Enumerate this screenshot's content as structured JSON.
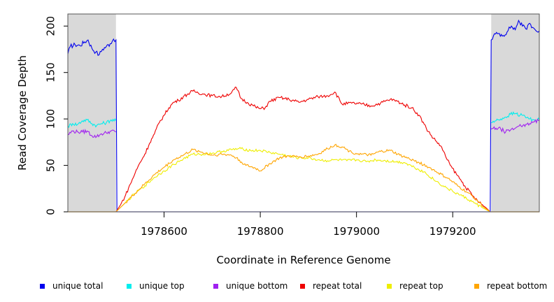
{
  "chart_data": {
    "type": "line",
    "title": "",
    "xlabel": "Coordinate in Reference Genome",
    "ylabel": "Read Coverage Depth",
    "xlim": [
      1978400,
      1979380
    ],
    "ylim": [
      0,
      213
    ],
    "xticks": [
      1978600,
      1978800,
      1979000,
      1979200
    ],
    "xtick_labels": [
      "1978600",
      "1978800",
      "1979000",
      "1979200"
    ],
    "yticks": [
      0,
      50,
      100,
      150,
      200
    ],
    "ytick_labels": [
      "0",
      "50",
      "100",
      "150",
      "200"
    ],
    "grid": false,
    "shaded_regions": [
      {
        "x": [
          1978400,
          1978500
        ],
        "color": "#d9d9d9"
      },
      {
        "x": [
          1979280,
          1979380
        ],
        "color": "#d9d9d9"
      }
    ],
    "legend_position": "bottom",
    "series": [
      {
        "name": "unique total",
        "color": "#0000ee",
        "points": [
          [
            1978400,
            170
          ],
          [
            1978405,
            178
          ],
          [
            1978415,
            180
          ],
          [
            1978425,
            179
          ],
          [
            1978435,
            183
          ],
          [
            1978442,
            185
          ],
          [
            1978450,
            176
          ],
          [
            1978458,
            172
          ],
          [
            1978465,
            169
          ],
          [
            1978472,
            175
          ],
          [
            1978480,
            178
          ],
          [
            1978488,
            181
          ],
          [
            1978495,
            186
          ],
          [
            1978500,
            185
          ],
          [
            1978502,
            0
          ],
          [
            1979278,
            0
          ],
          [
            1979280,
            185
          ],
          [
            1979285,
            190
          ],
          [
            1979295,
            192
          ],
          [
            1979305,
            190
          ],
          [
            1979315,
            195
          ],
          [
            1979322,
            200
          ],
          [
            1979330,
            196
          ],
          [
            1979337,
            206
          ],
          [
            1979345,
            200
          ],
          [
            1979352,
            197
          ],
          [
            1979360,
            203
          ],
          [
            1979368,
            198
          ],
          [
            1979375,
            194
          ],
          [
            1979380,
            195
          ]
        ]
      },
      {
        "name": "unique top",
        "color": "#00eeee",
        "points": [
          [
            1978400,
            92
          ],
          [
            1978410,
            95
          ],
          [
            1978420,
            94
          ],
          [
            1978430,
            98
          ],
          [
            1978440,
            99
          ],
          [
            1978450,
            95
          ],
          [
            1978460,
            93
          ],
          [
            1978470,
            95
          ],
          [
            1978480,
            96
          ],
          [
            1978490,
            99
          ],
          [
            1978500,
            98
          ],
          [
            1979280,
            96
          ],
          [
            1979290,
            98
          ],
          [
            1979300,
            100
          ],
          [
            1979310,
            102
          ],
          [
            1979320,
            105
          ],
          [
            1979330,
            106
          ],
          [
            1979340,
            104
          ],
          [
            1979350,
            103
          ],
          [
            1979360,
            100
          ],
          [
            1979370,
            99
          ],
          [
            1979380,
            99
          ]
        ]
      },
      {
        "name": "unique bottom",
        "color": "#a020f0",
        "points": [
          [
            1978400,
            83
          ],
          [
            1978410,
            87
          ],
          [
            1978420,
            86
          ],
          [
            1978430,
            86
          ],
          [
            1978440,
            87
          ],
          [
            1978450,
            82
          ],
          [
            1978460,
            81
          ],
          [
            1978470,
            84
          ],
          [
            1978480,
            85
          ],
          [
            1978490,
            87
          ],
          [
            1978500,
            86
          ],
          [
            1979280,
            89
          ],
          [
            1979290,
            90
          ],
          [
            1979300,
            89
          ],
          [
            1979310,
            86
          ],
          [
            1979320,
            88
          ],
          [
            1979330,
            90
          ],
          [
            1979340,
            94
          ],
          [
            1979350,
            92
          ],
          [
            1979360,
            95
          ],
          [
            1979370,
            97
          ],
          [
            1979380,
            98
          ]
        ]
      },
      {
        "name": "repeat total",
        "color": "#ee0000",
        "points": [
          [
            1978500,
            0
          ],
          [
            1978510,
            8
          ],
          [
            1978520,
            18
          ],
          [
            1978530,
            30
          ],
          [
            1978540,
            42
          ],
          [
            1978550,
            53
          ],
          [
            1978560,
            62
          ],
          [
            1978570,
            74
          ],
          [
            1978580,
            84
          ],
          [
            1978590,
            96
          ],
          [
            1978600,
            104
          ],
          [
            1978610,
            112
          ],
          [
            1978620,
            118
          ],
          [
            1978630,
            120
          ],
          [
            1978640,
            124
          ],
          [
            1978650,
            127
          ],
          [
            1978660,
            130
          ],
          [
            1978680,
            127
          ],
          [
            1978700,
            125
          ],
          [
            1978720,
            124
          ],
          [
            1978740,
            128
          ],
          [
            1978750,
            134
          ],
          [
            1978760,
            122
          ],
          [
            1978775,
            117
          ],
          [
            1978790,
            113
          ],
          [
            1978800,
            111
          ],
          [
            1978810,
            112
          ],
          [
            1978820,
            119
          ],
          [
            1978840,
            123
          ],
          [
            1978860,
            121
          ],
          [
            1978880,
            118
          ],
          [
            1978900,
            121
          ],
          [
            1978920,
            124
          ],
          [
            1978940,
            125
          ],
          [
            1978955,
            129
          ],
          [
            1978970,
            116
          ],
          [
            1978990,
            117
          ],
          [
            1979010,
            116
          ],
          [
            1979030,
            114
          ],
          [
            1979050,
            117
          ],
          [
            1979070,
            121
          ],
          [
            1979085,
            119
          ],
          [
            1979100,
            115
          ],
          [
            1979115,
            112
          ],
          [
            1979130,
            104
          ],
          [
            1979145,
            90
          ],
          [
            1979160,
            79
          ],
          [
            1979175,
            71
          ],
          [
            1979185,
            60
          ],
          [
            1979195,
            50
          ],
          [
            1979210,
            39
          ],
          [
            1979225,
            28
          ],
          [
            1979240,
            18
          ],
          [
            1979255,
            10
          ],
          [
            1979270,
            4
          ],
          [
            1979278,
            0
          ]
        ]
      },
      {
        "name": "repeat top",
        "color": "#eeee00",
        "points": [
          [
            1978500,
            0
          ],
          [
            1978520,
            10
          ],
          [
            1978540,
            20
          ],
          [
            1978560,
            28
          ],
          [
            1978580,
            37
          ],
          [
            1978600,
            44
          ],
          [
            1978620,
            51
          ],
          [
            1978640,
            57
          ],
          [
            1978660,
            62
          ],
          [
            1978680,
            62
          ],
          [
            1978700,
            63
          ],
          [
            1978720,
            65
          ],
          [
            1978740,
            67
          ],
          [
            1978760,
            68
          ],
          [
            1978780,
            66
          ],
          [
            1978800,
            66
          ],
          [
            1978820,
            64
          ],
          [
            1978840,
            62
          ],
          [
            1978860,
            60
          ],
          [
            1978880,
            58
          ],
          [
            1978900,
            58
          ],
          [
            1978920,
            56
          ],
          [
            1978940,
            55
          ],
          [
            1978960,
            56
          ],
          [
            1978980,
            55
          ],
          [
            1979000,
            56
          ],
          [
            1979020,
            54
          ],
          [
            1979040,
            56
          ],
          [
            1979060,
            55
          ],
          [
            1979080,
            54
          ],
          [
            1979100,
            53
          ],
          [
            1979120,
            48
          ],
          [
            1979140,
            43
          ],
          [
            1979160,
            35
          ],
          [
            1979180,
            28
          ],
          [
            1979200,
            22
          ],
          [
            1979220,
            17
          ],
          [
            1979240,
            11
          ],
          [
            1979260,
            5
          ],
          [
            1979278,
            0
          ]
        ]
      },
      {
        "name": "repeat bottom",
        "color": "#ffa500",
        "points": [
          [
            1978500,
            0
          ],
          [
            1978520,
            10
          ],
          [
            1978540,
            20
          ],
          [
            1978560,
            30
          ],
          [
            1978580,
            40
          ],
          [
            1978600,
            48
          ],
          [
            1978620,
            56
          ],
          [
            1978640,
            61
          ],
          [
            1978660,
            67
          ],
          [
            1978680,
            64
          ],
          [
            1978700,
            61
          ],
          [
            1978720,
            62
          ],
          [
            1978740,
            61
          ],
          [
            1978750,
            58
          ],
          [
            1978770,
            50
          ],
          [
            1978790,
            47
          ],
          [
            1978800,
            44
          ],
          [
            1978820,
            52
          ],
          [
            1978840,
            58
          ],
          [
            1978860,
            60
          ],
          [
            1978880,
            59
          ],
          [
            1978900,
            60
          ],
          [
            1978920,
            62
          ],
          [
            1978940,
            68
          ],
          [
            1978955,
            72
          ],
          [
            1978970,
            70
          ],
          [
            1978990,
            64
          ],
          [
            1979010,
            62
          ],
          [
            1979030,
            61
          ],
          [
            1979050,
            65
          ],
          [
            1979070,
            66
          ],
          [
            1979090,
            61
          ],
          [
            1979110,
            57
          ],
          [
            1979130,
            53
          ],
          [
            1979150,
            48
          ],
          [
            1979170,
            42
          ],
          [
            1979190,
            36
          ],
          [
            1979210,
            28
          ],
          [
            1979230,
            21
          ],
          [
            1979250,
            13
          ],
          [
            1979265,
            5
          ],
          [
            1979278,
            0
          ]
        ]
      }
    ]
  }
}
